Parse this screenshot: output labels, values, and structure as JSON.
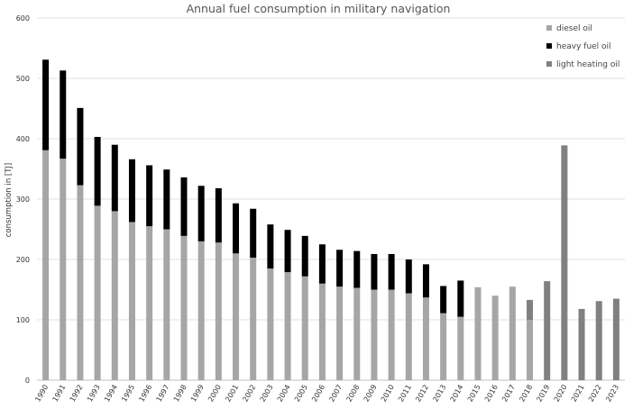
{
  "chart_data": {
    "type": "bar",
    "stacked": true,
    "title": "Annual fuel consumption in military navigation",
    "xlabel": "",
    "ylabel": "consumption in [TJ]",
    "ylim": [
      0,
      600
    ],
    "yticks": [
      0,
      100,
      200,
      300,
      400,
      500,
      600
    ],
    "grid": true,
    "legend_position": "top-right",
    "categories": [
      "1990",
      "1991",
      "1992",
      "1993",
      "1994",
      "1995",
      "1996",
      "1997",
      "1998",
      "1999",
      "2000",
      "2001",
      "2002",
      "2003",
      "2004",
      "2005",
      "2006",
      "2007",
      "2008",
      "2009",
      "2010",
      "2011",
      "2012",
      "2013",
      "2014",
      "2015",
      "2016",
      "2017",
      "2018",
      "2019",
      "2020",
      "2021",
      "2022",
      "2023"
    ],
    "series": [
      {
        "name": "diesel oil",
        "color": "#a6a6a6",
        "values": [
          381,
          367,
          323,
          289,
          280,
          262,
          255,
          250,
          239,
          230,
          228,
          210,
          203,
          185,
          179,
          172,
          160,
          155,
          153,
          150,
          150,
          144,
          137,
          111,
          105,
          154,
          140,
          155,
          100,
          0,
          0,
          0,
          0,
          0
        ]
      },
      {
        "name": "heavy fuel oil",
        "color": "#000000",
        "values": [
          150,
          146,
          128,
          114,
          110,
          104,
          101,
          99,
          97,
          92,
          90,
          83,
          81,
          73,
          70,
          67,
          65,
          61,
          61,
          59,
          59,
          56,
          55,
          45,
          60,
          0,
          0,
          0,
          0,
          0,
          0,
          0,
          0,
          0
        ]
      },
      {
        "name": "light heating oil",
        "color": "#808080",
        "values": [
          0,
          0,
          0,
          0,
          0,
          0,
          0,
          0,
          0,
          0,
          0,
          0,
          0,
          0,
          0,
          0,
          0,
          0,
          0,
          0,
          0,
          0,
          0,
          0,
          0,
          0,
          0,
          0,
          33,
          164,
          389,
          118,
          131,
          135
        ]
      }
    ]
  }
}
